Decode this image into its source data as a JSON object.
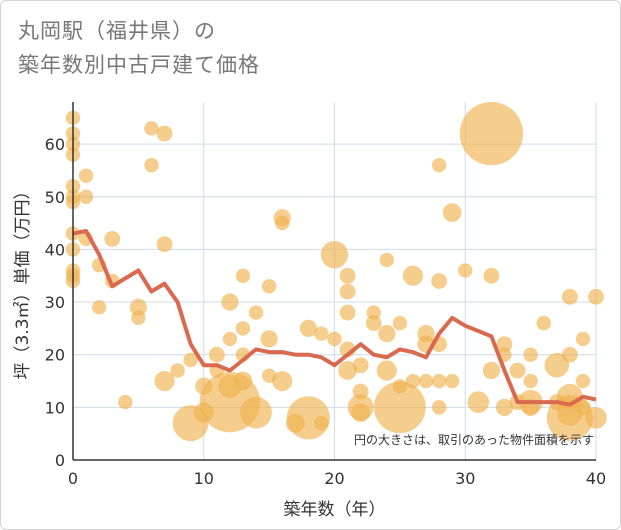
{
  "chart_data": {
    "type": "scatter",
    "title": "丸岡駅（福井県）の\n築年数別中古戸建て価格",
    "xlabel": "築年数（年）",
    "ylabel": "坪（3.3㎡）単価（万円）",
    "xlim": [
      0,
      40
    ],
    "ylim": [
      0,
      68
    ],
    "xticks": [
      0,
      10,
      20,
      30,
      40
    ],
    "yticks": [
      0,
      10,
      20,
      30,
      40,
      50,
      60
    ],
    "grid": true,
    "annotation": "円の大きさは、取引のあった物件面積を示す",
    "colors": {
      "bubble": "#f0b24f",
      "line": "#d9694f",
      "grid": "#cfdbe6",
      "axis": "#333333"
    },
    "series": [
      {
        "kind": "bubble",
        "points": [
          {
            "x": 0,
            "y": 65,
            "s": 1
          },
          {
            "x": 0,
            "y": 62,
            "s": 1
          },
          {
            "x": 0,
            "y": 60,
            "s": 1
          },
          {
            "x": 0,
            "y": 58,
            "s": 1
          },
          {
            "x": 0,
            "y": 52,
            "s": 1
          },
          {
            "x": 0,
            "y": 50,
            "s": 1
          },
          {
            "x": 0,
            "y": 49,
            "s": 1
          },
          {
            "x": 0,
            "y": 43,
            "s": 1
          },
          {
            "x": 0,
            "y": 40,
            "s": 1
          },
          {
            "x": 0,
            "y": 36,
            "s": 1
          },
          {
            "x": 0,
            "y": 35,
            "s": 1
          },
          {
            "x": 0,
            "y": 34,
            "s": 1
          },
          {
            "x": 1,
            "y": 54,
            "s": 1
          },
          {
            "x": 1,
            "y": 50,
            "s": 1
          },
          {
            "x": 1,
            "y": 42,
            "s": 1
          },
          {
            "x": 2,
            "y": 37,
            "s": 1
          },
          {
            "x": 2,
            "y": 29,
            "s": 1
          },
          {
            "x": 3,
            "y": 42,
            "s": 1.1
          },
          {
            "x": 3,
            "y": 34,
            "s": 1
          },
          {
            "x": 4,
            "y": 11,
            "s": 1
          },
          {
            "x": 5,
            "y": 29,
            "s": 1.2
          },
          {
            "x": 5,
            "y": 27,
            "s": 1
          },
          {
            "x": 6,
            "y": 63,
            "s": 1
          },
          {
            "x": 6,
            "y": 56,
            "s": 1
          },
          {
            "x": 7,
            "y": 62,
            "s": 1.1
          },
          {
            "x": 7,
            "y": 41,
            "s": 1.1
          },
          {
            "x": 7,
            "y": 15,
            "s": 1.4
          },
          {
            "x": 8,
            "y": 17,
            "s": 1
          },
          {
            "x": 9,
            "y": 19,
            "s": 1
          },
          {
            "x": 9,
            "y": 7,
            "s": 2.5
          },
          {
            "x": 10,
            "y": 14,
            "s": 1.2
          },
          {
            "x": 10,
            "y": 9,
            "s": 1.4
          },
          {
            "x": 11,
            "y": 20,
            "s": 1.1
          },
          {
            "x": 11,
            "y": 17,
            "s": 1
          },
          {
            "x": 12,
            "y": 30,
            "s": 1.2
          },
          {
            "x": 12,
            "y": 23,
            "s": 1
          },
          {
            "x": 12,
            "y": 14,
            "s": 1.6
          },
          {
            "x": 12,
            "y": 11,
            "s": 4.2
          },
          {
            "x": 13,
            "y": 35,
            "s": 1
          },
          {
            "x": 13,
            "y": 25,
            "s": 1
          },
          {
            "x": 13,
            "y": 20,
            "s": 1
          },
          {
            "x": 13,
            "y": 15,
            "s": 1.3
          },
          {
            "x": 14,
            "y": 28,
            "s": 1
          },
          {
            "x": 14,
            "y": 9,
            "s": 2.2
          },
          {
            "x": 15,
            "y": 33,
            "s": 1
          },
          {
            "x": 15,
            "y": 23,
            "s": 1.2
          },
          {
            "x": 15,
            "y": 16,
            "s": 1
          },
          {
            "x": 16,
            "y": 46,
            "s": 1.2
          },
          {
            "x": 16,
            "y": 45,
            "s": 1
          },
          {
            "x": 16,
            "y": 15,
            "s": 1.4
          },
          {
            "x": 17,
            "y": 7,
            "s": 1.3
          },
          {
            "x": 18,
            "y": 25,
            "s": 1.2
          },
          {
            "x": 18,
            "y": 8,
            "s": 3
          },
          {
            "x": 19,
            "y": 24,
            "s": 1
          },
          {
            "x": 19,
            "y": 7,
            "s": 1
          },
          {
            "x": 20,
            "y": 39,
            "s": 1.9
          },
          {
            "x": 20,
            "y": 23,
            "s": 1
          },
          {
            "x": 21,
            "y": 35,
            "s": 1.1
          },
          {
            "x": 21,
            "y": 32,
            "s": 1.1
          },
          {
            "x": 21,
            "y": 28,
            "s": 1.1
          },
          {
            "x": 21,
            "y": 21,
            "s": 1.1
          },
          {
            "x": 21,
            "y": 17,
            "s": 1.3
          },
          {
            "x": 22,
            "y": 18,
            "s": 1.1
          },
          {
            "x": 22,
            "y": 13,
            "s": 1.1
          },
          {
            "x": 22,
            "y": 10,
            "s": 1.8
          },
          {
            "x": 22,
            "y": 9,
            "s": 1.3
          },
          {
            "x": 23,
            "y": 28,
            "s": 1
          },
          {
            "x": 23,
            "y": 26,
            "s": 1.1
          },
          {
            "x": 24,
            "y": 38,
            "s": 1
          },
          {
            "x": 24,
            "y": 24,
            "s": 1.2
          },
          {
            "x": 24,
            "y": 17,
            "s": 1.4
          },
          {
            "x": 25,
            "y": 26,
            "s": 1
          },
          {
            "x": 25,
            "y": 14,
            "s": 1
          },
          {
            "x": 25,
            "y": 10,
            "s": 3.6
          },
          {
            "x": 26,
            "y": 35,
            "s": 1.4
          },
          {
            "x": 26,
            "y": 15,
            "s": 1
          },
          {
            "x": 27,
            "y": 24,
            "s": 1.2
          },
          {
            "x": 27,
            "y": 22,
            "s": 1.2
          },
          {
            "x": 27,
            "y": 15,
            "s": 1
          },
          {
            "x": 28,
            "y": 56,
            "s": 1
          },
          {
            "x": 28,
            "y": 34,
            "s": 1.1
          },
          {
            "x": 28,
            "y": 22,
            "s": 1.1
          },
          {
            "x": 28,
            "y": 15,
            "s": 1
          },
          {
            "x": 28,
            "y": 10,
            "s": 1
          },
          {
            "x": 29,
            "y": 47,
            "s": 1.3
          },
          {
            "x": 29,
            "y": 15,
            "s": 1
          },
          {
            "x": 30,
            "y": 36,
            "s": 1
          },
          {
            "x": 31,
            "y": 11,
            "s": 1.5
          },
          {
            "x": 32,
            "y": 62,
            "s": 4.4
          },
          {
            "x": 32,
            "y": 35,
            "s": 1.1
          },
          {
            "x": 32,
            "y": 17,
            "s": 1.2
          },
          {
            "x": 33,
            "y": 22,
            "s": 1.1
          },
          {
            "x": 33,
            "y": 20,
            "s": 1
          },
          {
            "x": 33,
            "y": 10,
            "s": 1.2
          },
          {
            "x": 34,
            "y": 17,
            "s": 1.1
          },
          {
            "x": 34,
            "y": 11,
            "s": 1.1
          },
          {
            "x": 35,
            "y": 20,
            "s": 1
          },
          {
            "x": 35,
            "y": 15,
            "s": 1
          },
          {
            "x": 35,
            "y": 11,
            "s": 1.7
          },
          {
            "x": 35,
            "y": 10,
            "s": 1.2
          },
          {
            "x": 36,
            "y": 26,
            "s": 1
          },
          {
            "x": 37,
            "y": 18,
            "s": 1.7
          },
          {
            "x": 37,
            "y": 11,
            "s": 1.1
          },
          {
            "x": 38,
            "y": 31,
            "s": 1.1
          },
          {
            "x": 38,
            "y": 20,
            "s": 1.1
          },
          {
            "x": 38,
            "y": 12,
            "s": 1.8
          },
          {
            "x": 38,
            "y": 9,
            "s": 1.8
          },
          {
            "x": 38,
            "y": 8,
            "s": 3.2
          },
          {
            "x": 39,
            "y": 23,
            "s": 1
          },
          {
            "x": 39,
            "y": 15,
            "s": 1
          },
          {
            "x": 39,
            "y": 10,
            "s": 1.1
          },
          {
            "x": 40,
            "y": 31,
            "s": 1.1
          },
          {
            "x": 40,
            "y": 8,
            "s": 1.5
          }
        ]
      },
      {
        "kind": "line",
        "x": [
          0,
          1,
          2,
          3,
          4,
          5,
          6,
          7,
          8,
          9,
          10,
          11,
          12,
          13,
          14,
          15,
          16,
          17,
          18,
          19,
          20,
          21,
          22,
          23,
          24,
          25,
          26,
          27,
          28,
          29,
          30,
          31,
          32,
          33,
          34,
          35,
          36,
          37,
          38,
          39,
          40
        ],
        "y": [
          43,
          43.5,
          39,
          33,
          34.5,
          36,
          32,
          33.5,
          30,
          22,
          18,
          18,
          17,
          19,
          21,
          20.5,
          20.5,
          20,
          20,
          19.5,
          18,
          20,
          22,
          20,
          19.5,
          21,
          20.5,
          19.5,
          24,
          27,
          25.5,
          24.5,
          23.5,
          17,
          11,
          11,
          11,
          11,
          10.5,
          12,
          11.5
        ]
      }
    ]
  }
}
